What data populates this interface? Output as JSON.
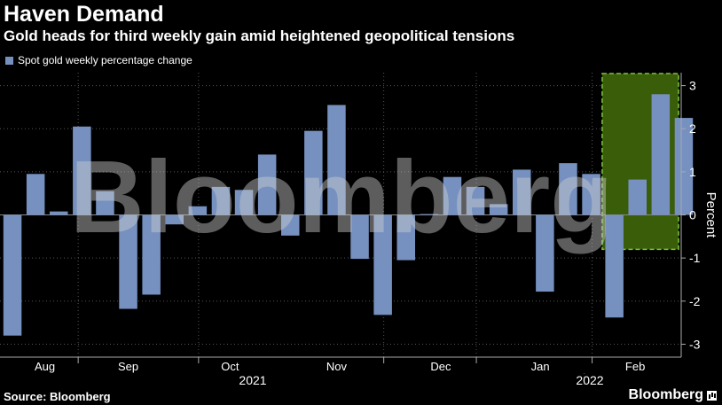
{
  "title": "Haven Demand",
  "subtitle": "Gold heads for third weekly gain amid heightened geopolitical tensions",
  "legend": {
    "label": "Spot gold weekly percentage change",
    "color": "#7691c0"
  },
  "source": "Source: Bloomberg",
  "brand": "Bloomberg",
  "watermark": "Bloomberg",
  "colors": {
    "bar": "#7691c0",
    "highlight_fill": "#3a5d0a",
    "highlight_border": "#7cc242",
    "grid": "#555555",
    "axis": "#aaaaaa"
  },
  "chart_data": {
    "type": "bar",
    "ylabel": "Percent",
    "ylim": [
      -3.3,
      3.3
    ],
    "yticks": [
      -3,
      -2,
      -1,
      0,
      1,
      2,
      3
    ],
    "y_axis_side": "right",
    "grid": true,
    "months": [
      "Aug",
      "Sep",
      "Oct",
      "Nov",
      "Dec",
      "Jan",
      "Feb"
    ],
    "years": [
      "2021",
      "2022"
    ],
    "values": [
      -2.8,
      0.95,
      0.08,
      2.05,
      0.55,
      -2.18,
      -1.85,
      -0.22,
      0.2,
      0.65,
      0.58,
      1.4,
      -0.48,
      1.95,
      2.55,
      -1.02,
      -2.32,
      -1.05,
      0.02,
      0.88,
      0.65,
      0.25,
      1.05,
      -1.78,
      1.2,
      0.95,
      -2.38,
      0.82,
      2.8,
      2.25
    ],
    "highlight": {
      "from_index": 26,
      "to_index": 29,
      "y_range": [
        -0.8,
        3.3
      ]
    }
  }
}
